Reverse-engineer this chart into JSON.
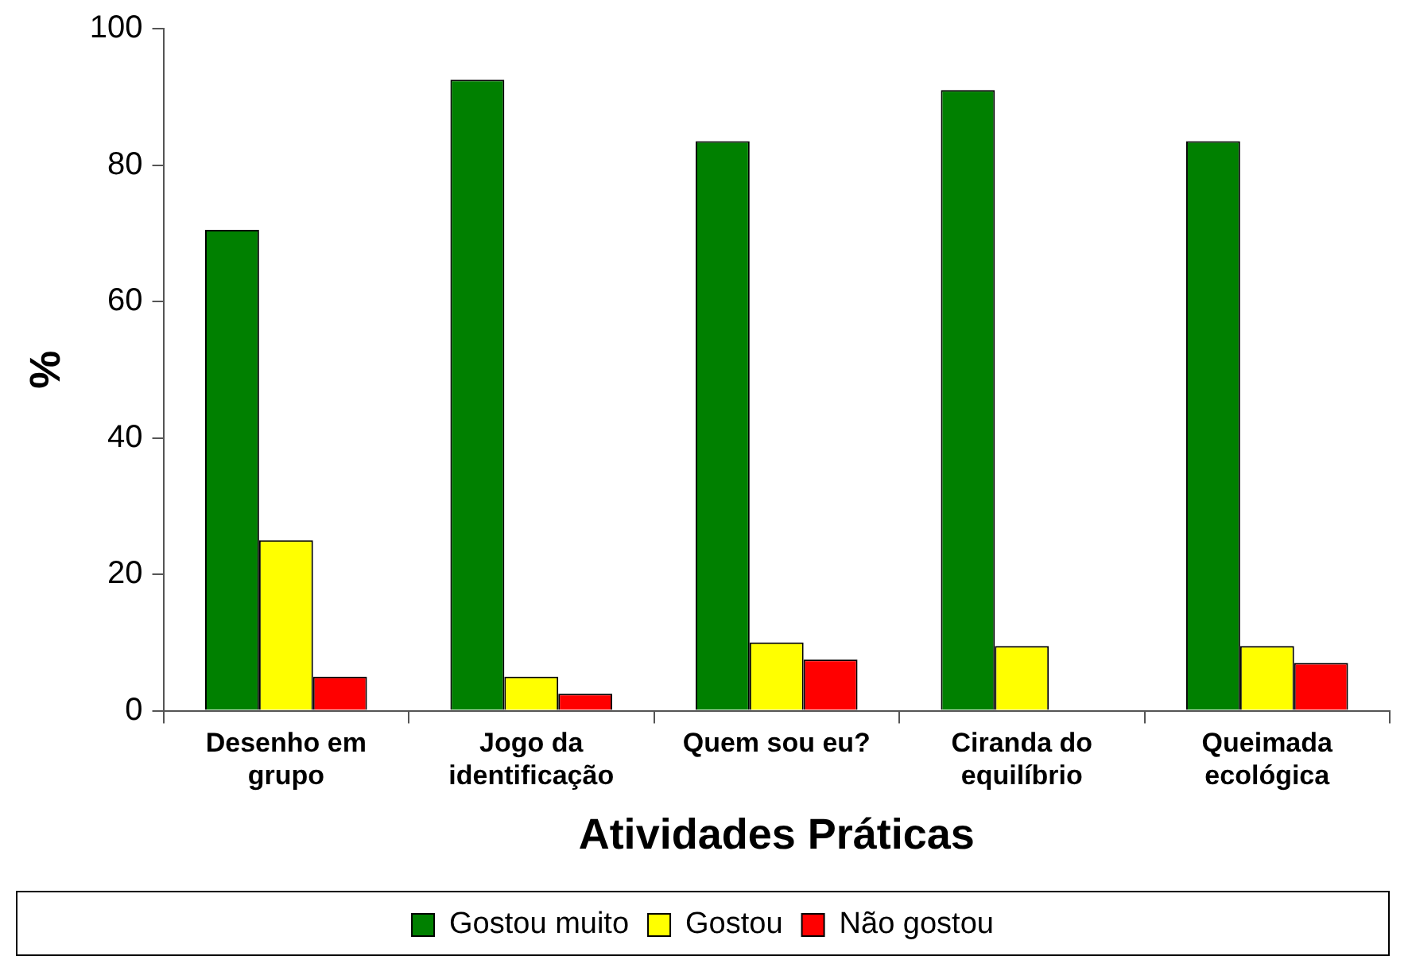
{
  "chart_data": {
    "type": "bar",
    "categories": [
      "Desenho em\ngrupo",
      "Jogo da\nidentificação",
      "Quem sou eu?",
      "Ciranda do\nequilíbrio",
      "Queimada\necológica"
    ],
    "series": [
      {
        "name": "Gostou muito",
        "color": "#008000",
        "values": [
          70.5,
          92.5,
          83.5,
          91,
          83.5
        ]
      },
      {
        "name": "Gostou",
        "color": "#ffff00",
        "values": [
          25,
          5,
          10,
          9.5,
          9.5
        ]
      },
      {
        "name": "Não gostou",
        "color": "#ff0000",
        "values": [
          5,
          2.5,
          7.5,
          0,
          7
        ]
      }
    ],
    "xlabel": "Atividades Práticas",
    "ylabel": "%",
    "ylim": [
      0,
      100
    ],
    "yticks": [
      0,
      20,
      40,
      60,
      80,
      100
    ],
    "grid": false,
    "legend": "bottom"
  }
}
